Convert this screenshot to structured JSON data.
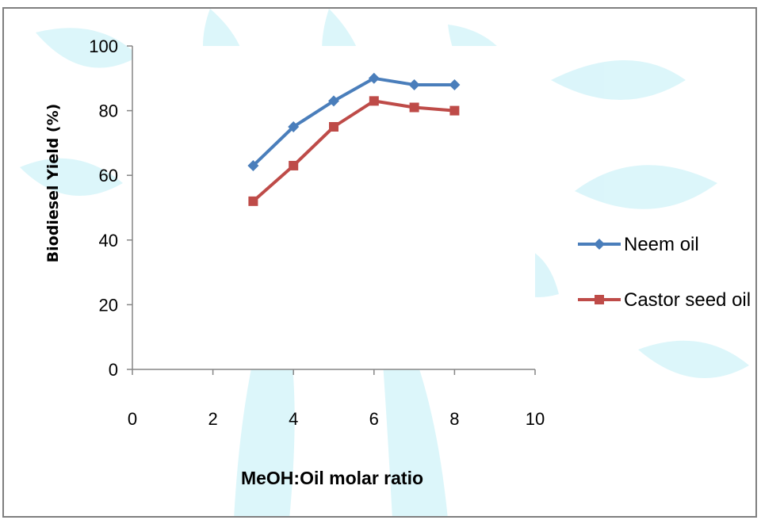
{
  "chart_data": {
    "type": "line",
    "title": "",
    "xlabel": "MeOH:Oil molar ratio",
    "ylabel": "Biodiesel Yield (%)",
    "xlim": [
      0,
      10
    ],
    "ylim": [
      0,
      100
    ],
    "xticks": [
      "0",
      "2",
      "4",
      "6",
      "8",
      "10"
    ],
    "yticks": [
      "0",
      "20",
      "40",
      "60",
      "80",
      "100"
    ],
    "grid": false,
    "legend_position": "right",
    "series": [
      {
        "name": "Neem oil",
        "color": "#4a7ebb",
        "marker": "diamond",
        "x": [
          3,
          4,
          5,
          6,
          7,
          8
        ],
        "y": [
          63,
          75,
          83,
          90,
          88,
          88
        ]
      },
      {
        "name": "Castor seed oil",
        "color": "#be4b48",
        "marker": "square",
        "x": [
          3,
          4,
          5,
          6,
          7,
          8
        ],
        "y": [
          52,
          63,
          75,
          83,
          81,
          80
        ]
      }
    ]
  }
}
